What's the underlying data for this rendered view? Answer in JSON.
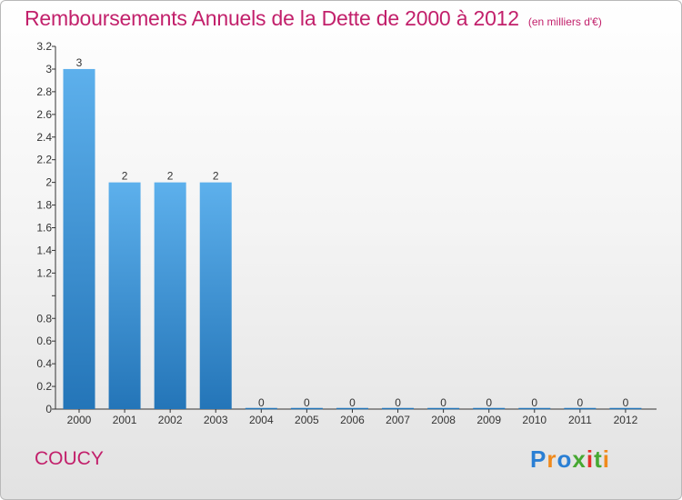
{
  "header": {
    "title": "Remboursements Annuels de la Dette de 2000 à 2012",
    "subtitle": "(en milliers d'€)"
  },
  "commune": "COUCY",
  "logo": {
    "text": "Proxiti",
    "letters": [
      "P",
      "r",
      "o",
      "x",
      "i",
      "t",
      "i"
    ]
  },
  "colors": {
    "title": "#c2206b",
    "bar_top": "#5db0ec",
    "bar_bottom": "#2475b8"
  },
  "chart_data": {
    "type": "bar",
    "title": "Remboursements Annuels de la Dette de 2000 à 2012",
    "subtitle": "(en milliers d'€)",
    "categories": [
      "2000",
      "2001",
      "2002",
      "2003",
      "2004",
      "2005",
      "2006",
      "2007",
      "2008",
      "2009",
      "2010",
      "2011",
      "2012"
    ],
    "values": [
      3,
      2,
      2,
      2,
      0,
      0,
      0,
      0,
      0,
      0,
      0,
      0,
      0
    ],
    "data_labels": [
      "3",
      "2",
      "2",
      "2",
      "0",
      "0",
      "0",
      "0",
      "0",
      "0",
      "0",
      "0",
      "0"
    ],
    "ylim": [
      0,
      3.2
    ],
    "yticks": [
      0,
      0.2,
      0.4,
      0.6,
      0.8,
      1,
      1.2,
      1.4,
      1.6,
      1.8,
      2,
      2.2,
      2.4,
      2.6,
      2.8,
      3,
      3.2
    ],
    "ytick_labels": [
      "0",
      "0.2",
      "0.4",
      "0.6",
      "0.8",
      "",
      "1.2",
      "1.4",
      "1.6",
      "1.8",
      "2",
      "2.2",
      "2.4",
      "2.6",
      "2.8",
      "3",
      "3.2"
    ],
    "grid": false,
    "legend": "none"
  }
}
